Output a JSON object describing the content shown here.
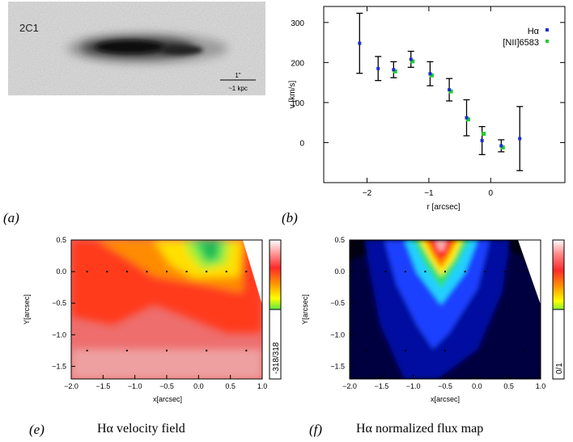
{
  "figure": {
    "galaxy_image": {
      "galaxy_id": "2C1",
      "scalebar_top": "1\"",
      "scalebar_bottom": "~1 kpc"
    },
    "panel_labels": {
      "a": "(a)",
      "b": "(b)",
      "e": "(e)",
      "f": "(f)"
    },
    "captions": {
      "e": "Hα velocity field",
      "f": "Hα normalized flux map"
    }
  },
  "chart_data": [
    {
      "id": "rotation-curve",
      "type": "scatter",
      "title": "",
      "xlabel": "r [arcsec]",
      "ylabel": "v [km/s]",
      "xlim": [
        -2.7,
        1.2
      ],
      "ylim": [
        -100,
        340
      ],
      "xticks": [
        -2,
        -1,
        0
      ],
      "yticks": [
        0,
        100,
        200,
        300
      ],
      "legend_position": "top-right",
      "series": [
        {
          "name": "Hα",
          "color": "#1a2fd0",
          "points": [
            {
              "x": -2.12,
              "y": 248,
              "err": 75
            },
            {
              "x": -1.82,
              "y": 185,
              "err": 30
            },
            {
              "x": -1.57,
              "y": 182,
              "err": 20
            },
            {
              "x": -1.29,
              "y": 208,
              "err": 20
            },
            {
              "x": -0.98,
              "y": 172,
              "err": 30
            },
            {
              "x": -0.67,
              "y": 132,
              "err": 28
            },
            {
              "x": -0.39,
              "y": 62,
              "err": 45
            },
            {
              "x": -0.14,
              "y": 5,
              "err": 35
            },
            {
              "x": 0.17,
              "y": -8,
              "err": 15
            },
            {
              "x": 0.47,
              "y": 10,
              "err": 80
            }
          ]
        },
        {
          "name": "[NII]6583",
          "color": "#22cc33",
          "points": [
            {
              "x": -1.57,
              "y": 178
            },
            {
              "x": -1.29,
              "y": 203
            },
            {
              "x": -0.98,
              "y": 168
            },
            {
              "x": -0.67,
              "y": 128
            },
            {
              "x": -0.39,
              "y": 58
            },
            {
              "x": -0.14,
              "y": 22
            },
            {
              "x": 0.17,
              "y": -12
            }
          ]
        }
      ]
    },
    {
      "id": "velocity-field",
      "type": "heatmap",
      "xlabel": "x[arcsec]",
      "ylabel": "Y[arcsec]",
      "xlim": [
        -2.0,
        1.0
      ],
      "ylim": [
        -1.7,
        0.5
      ],
      "xticks": [
        "-2.0",
        "-1.5",
        "-1.0",
        "-0.5",
        "0.0",
        "0.5",
        "1.0"
      ],
      "yticks": [
        "0.5",
        "0.0",
        "-0.5",
        "-1.0",
        "-1.5"
      ],
      "colorbar_label": "-318/318",
      "colormap": [
        "#ffffff",
        "#ff3c3c",
        "#ff9a00",
        "#ffff00",
        "#33dd55",
        "#00ffff",
        "#2d4dff",
        "#001a80"
      ]
    },
    {
      "id": "flux-map",
      "type": "heatmap",
      "xlabel": "x[arcsec]",
      "ylabel": "Y[arcsec]",
      "xlim": [
        -2.0,
        1.0
      ],
      "ylim": [
        -1.7,
        0.5
      ],
      "xticks": [
        "-2.0",
        "-1.5",
        "-1.0",
        "-0.5",
        "0.0",
        "0.5",
        "1.0"
      ],
      "yticks": [
        "0.5",
        "0.0",
        "-0.5",
        "-1.0",
        "-1.5"
      ],
      "colorbar_label": "0/1",
      "colormap": [
        "#ffffff",
        "#ff3c3c",
        "#ff9a00",
        "#ffff00",
        "#33dd55",
        "#00ffff",
        "#2d4dff",
        "#000000"
      ]
    }
  ]
}
